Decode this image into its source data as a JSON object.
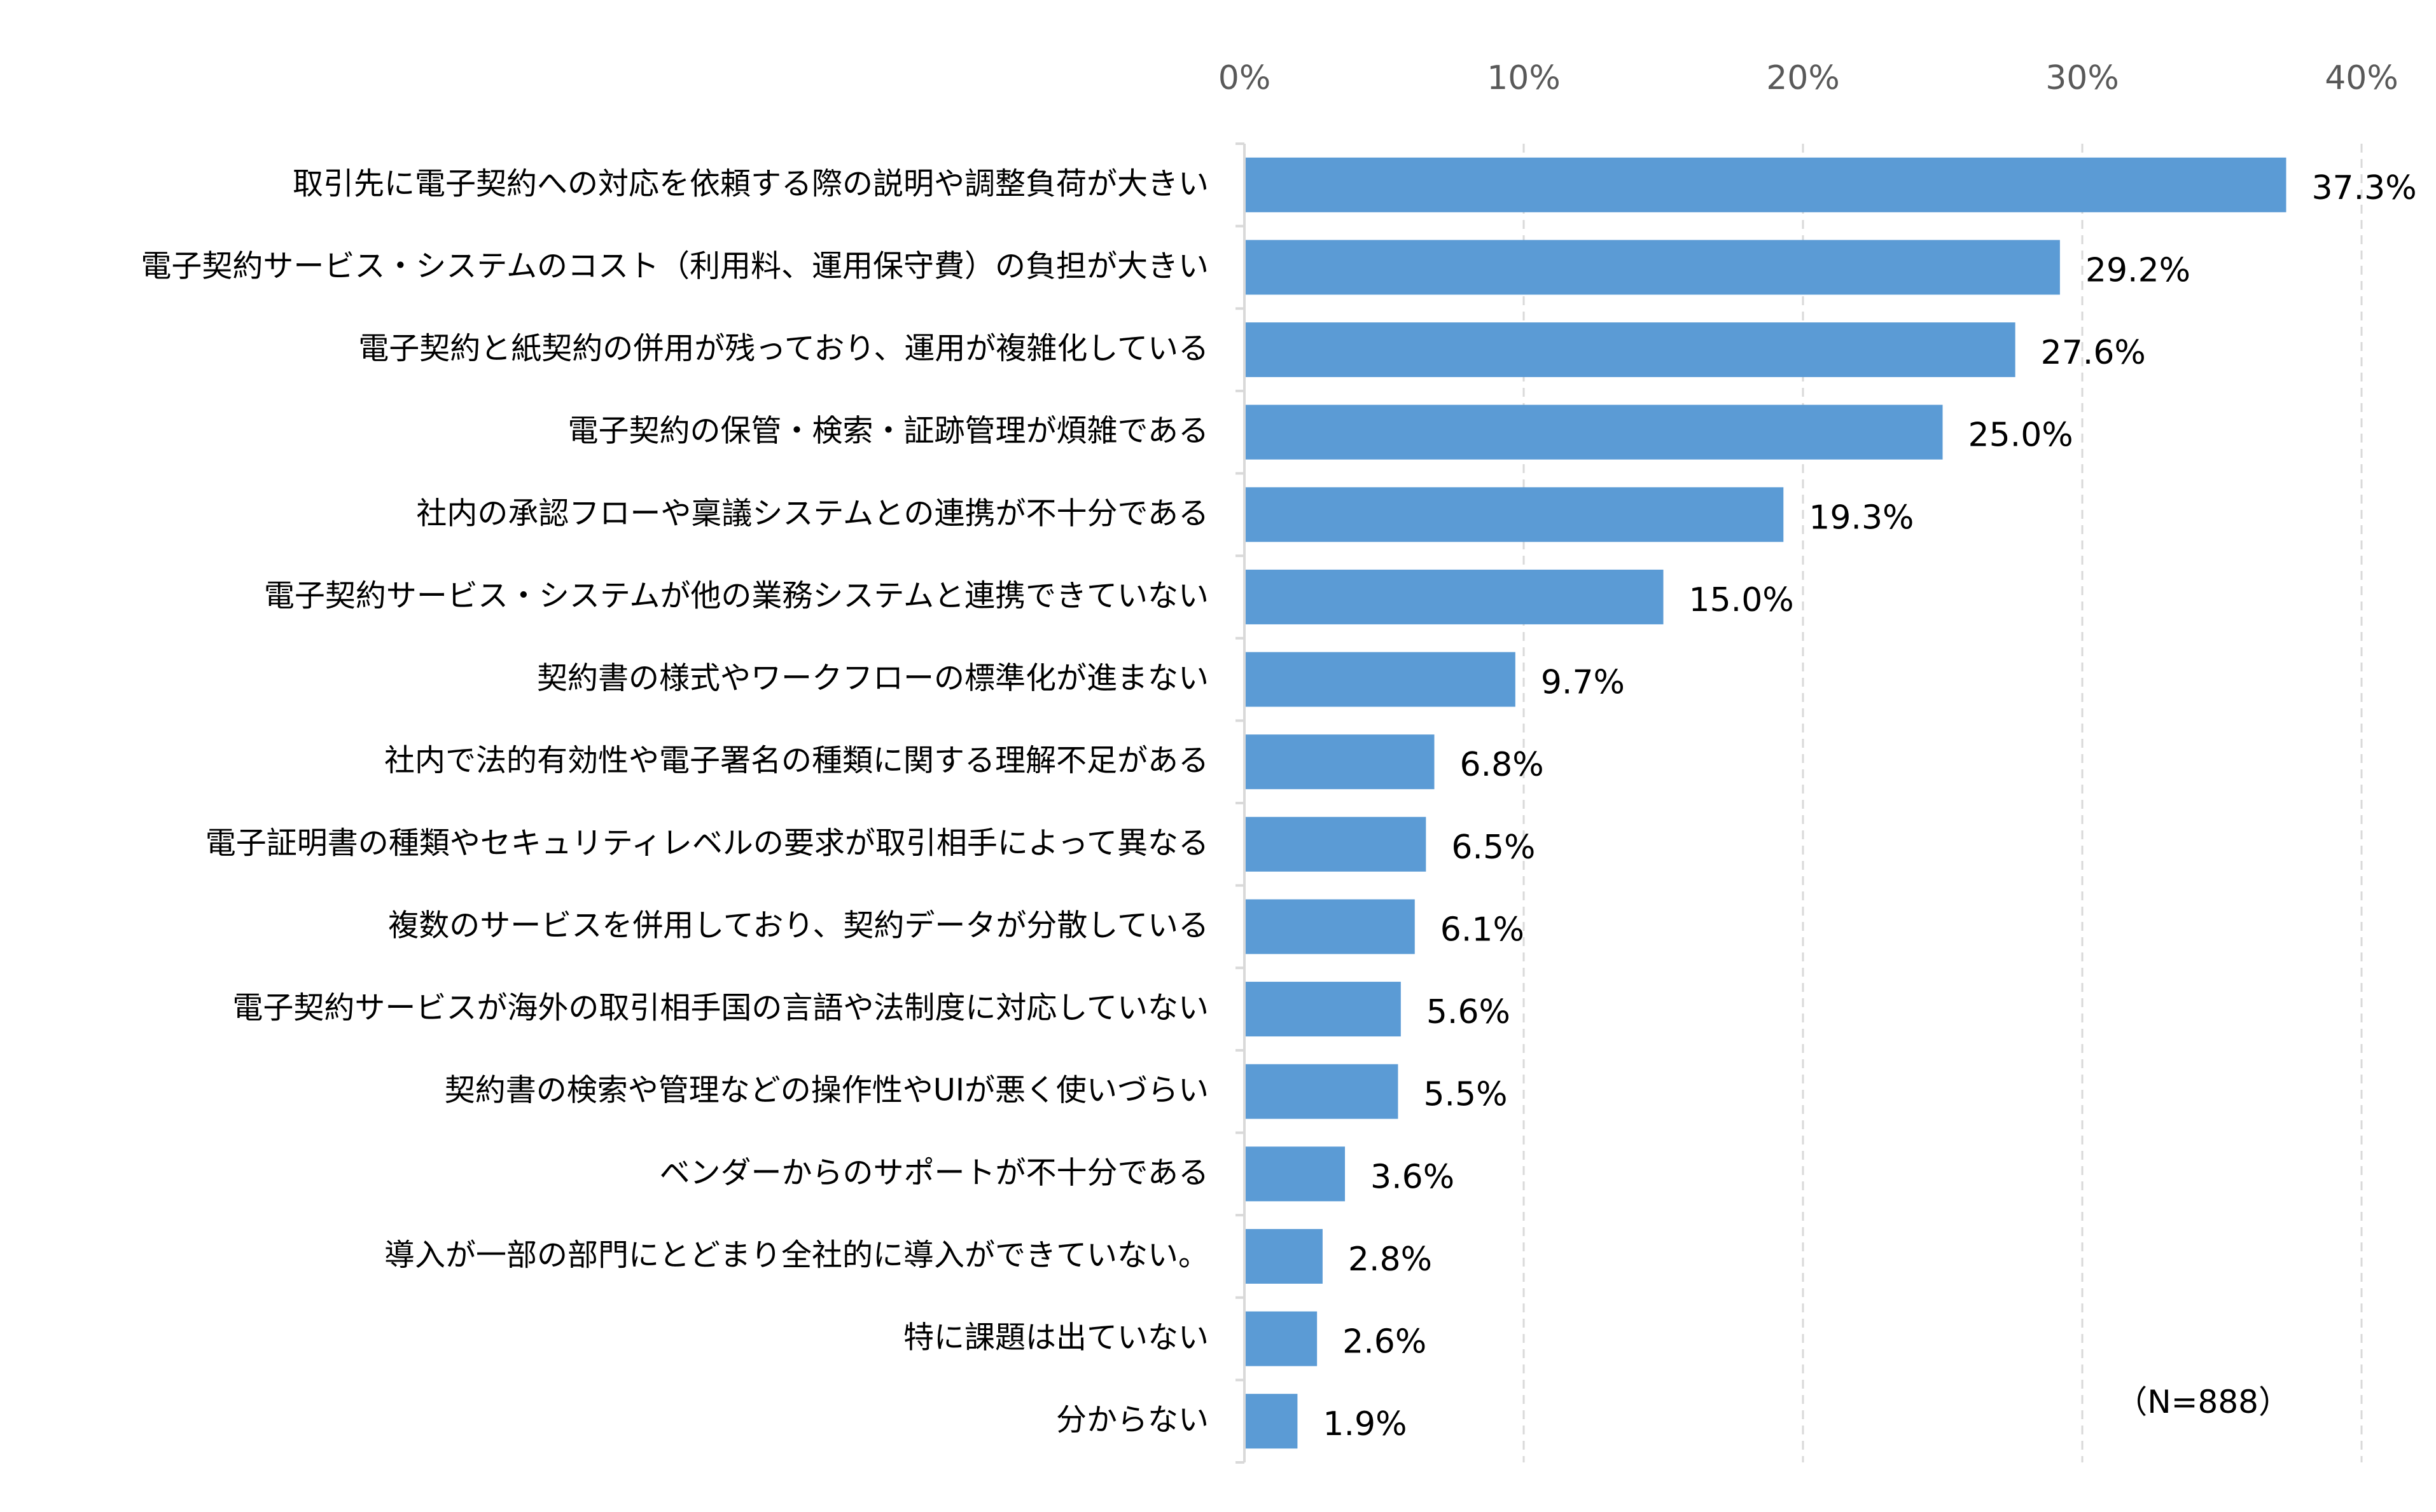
{
  "chart_data": {
    "type": "bar",
    "orientation": "horizontal",
    "categories": [
      "取引先に電子契約への対応を依頼する際の説明や調整負荷が大きい",
      "電子契約サービス・システムのコスト（利用料、運用保守費）の負担が大きい",
      "電子契約と紙契約の併用が残っており、運用が複雑化している",
      "電子契約の保管・検索・証跡管理が煩雑である",
      "社内の承認フローや稟議システムとの連携が不十分である",
      "電子契約サービス・システムが他の業務システムと連携できていない",
      "契約書の様式やワークフローの標準化が進まない",
      "社内で法的有効性や電子署名の種類に関する理解不足がある",
      "電子証明書の種類やセキュリティレベルの要求が取引相手によって異なる",
      "複数のサービスを併用しており、契約データが分散している",
      "電子契約サービスが海外の取引相手国の言語や法制度に対応していない",
      "契約書の検索や管理などの操作性やUIが悪く使いづらい",
      "ベンダーからのサポートが不十分である",
      "導入が一部の部門にとどまり全社的に導入ができていない。",
      "特に課題は出ていない",
      "分からない"
    ],
    "values": [
      37.3,
      29.2,
      27.6,
      25.0,
      19.3,
      15.0,
      9.7,
      6.8,
      6.5,
      6.1,
      5.6,
      5.5,
      3.6,
      2.8,
      2.6,
      1.9
    ],
    "value_labels": [
      "37.3%",
      "29.2%",
      "27.6%",
      "25.0%",
      "19.3%",
      "15.0%",
      "9.7%",
      "6.8%",
      "6.5%",
      "6.1%",
      "5.6%",
      "5.5%",
      "3.6%",
      "2.8%",
      "2.6%",
      "1.9%"
    ],
    "xlim": [
      0,
      40
    ],
    "x_ticks": [
      0,
      10,
      20,
      30,
      40
    ],
    "x_tick_labels": [
      "0%",
      "10%",
      "20%",
      "30%",
      "40%"
    ],
    "x_axis_position": "top",
    "grid": "vertical dashed",
    "annotation": "（N=888）",
    "colors": {
      "bar": "#5B9BD5",
      "grid": "#D9D9D9",
      "axis": "#D9D9D9"
    }
  }
}
